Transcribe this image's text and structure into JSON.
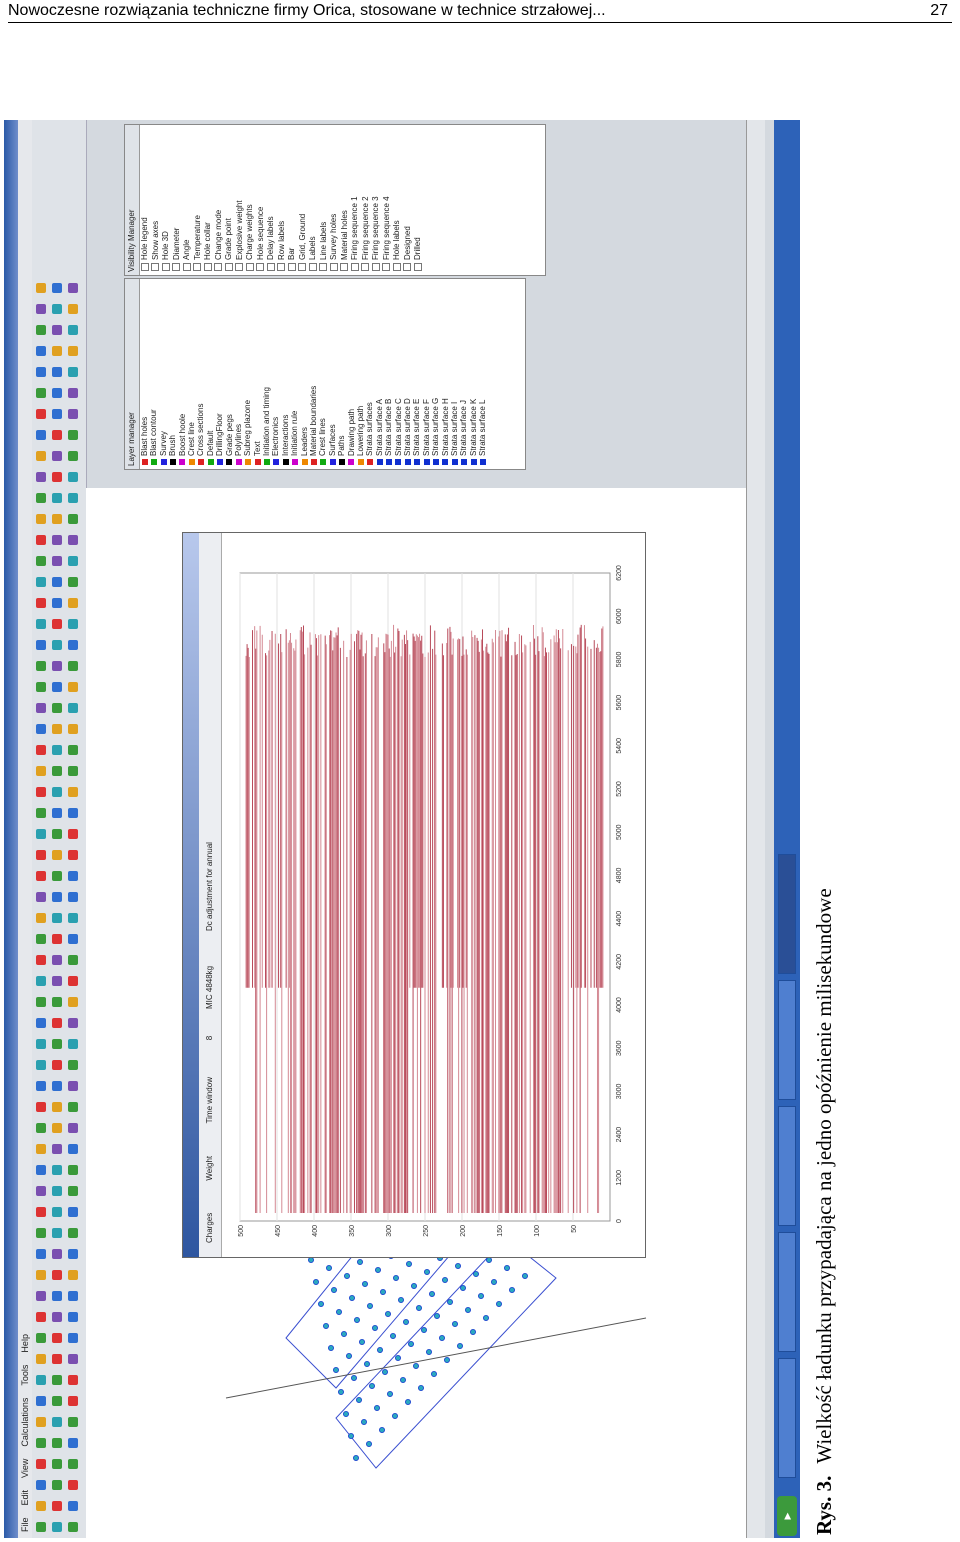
{
  "page": {
    "running_title": "Nowoczesne rozwiązania techniczne firmy Orica, stosowane w technice strzałowej...",
    "page_number": "27"
  },
  "figure": {
    "label": "Rys. 3.",
    "caption": "Wielkość ładunku przypadająca na jedno opóźnienie milisekundowe"
  },
  "screenshot": {
    "menu": [
      "File",
      "Edit",
      "View",
      "Calculations",
      "Tools",
      "Help"
    ],
    "timer_window": {
      "controls": [
        "Charges",
        "Weight",
        "Time window",
        "8",
        "MIC 4848kg",
        "Dc adjustment for annual"
      ]
    },
    "layer_manager": {
      "title": "Layer manager",
      "items": [
        "Blast holes",
        "Blast contour",
        "Survey",
        "Brush",
        "Boost hoole",
        "Crest line",
        "Cross sections",
        "Default",
        "DrillingFloor",
        "Grade pegs",
        "Polylines",
        "Subreg plazone",
        "Text",
        "Initiation and timing",
        "Electronics",
        "Interactions",
        "Initiation rule",
        "Leaders",
        "Material boundaries",
        "Crest lines",
        "Surfaces",
        "Paths",
        "Drawing path",
        "Lowering path",
        "Strata surfaces",
        "Strata surface A",
        "Strata surface B",
        "Strata surface C",
        "Strata surface D",
        "Strata surface E",
        "Strata surface F",
        "Strata surface G",
        "Strata surface H",
        "Strata surface I",
        "Strata surface J",
        "Strata surface K",
        "Strata surface L"
      ]
    },
    "visibility_manager": {
      "title": "Visibility Manager",
      "items": [
        "Hole legend",
        "Show axes",
        "Hole 3D",
        "Diameter",
        "Angle",
        "Temperature",
        "Hole collar",
        "Change mode",
        "Grade point",
        "Explosive weight",
        "Charge weights",
        "Hole sequence",
        "Delay labels",
        "Row labels",
        "Bar",
        "Grid, Ground",
        "Labels",
        "Line labels",
        "Survey holes",
        "Material holes",
        "Firing sequence 1",
        "Firing sequence 2",
        "Firing sequence 3",
        "Firing sequence 4",
        "Hole labels",
        "Designed",
        "Drilled"
      ]
    },
    "chart_data": {
      "type": "bar",
      "x_ticks": [
        "0",
        "1200",
        "2400",
        "3000",
        "3600",
        "4000",
        "4200",
        "4400",
        "4800",
        "5000",
        "5200",
        "5400",
        "5600",
        "5800",
        "6000",
        "6200"
      ],
      "y_ticks": [
        "50",
        "100",
        "150",
        "200",
        "250",
        "300",
        "350",
        "400",
        "450",
        "500"
      ],
      "ylim": [
        0,
        500
      ],
      "grid": true
    }
  }
}
